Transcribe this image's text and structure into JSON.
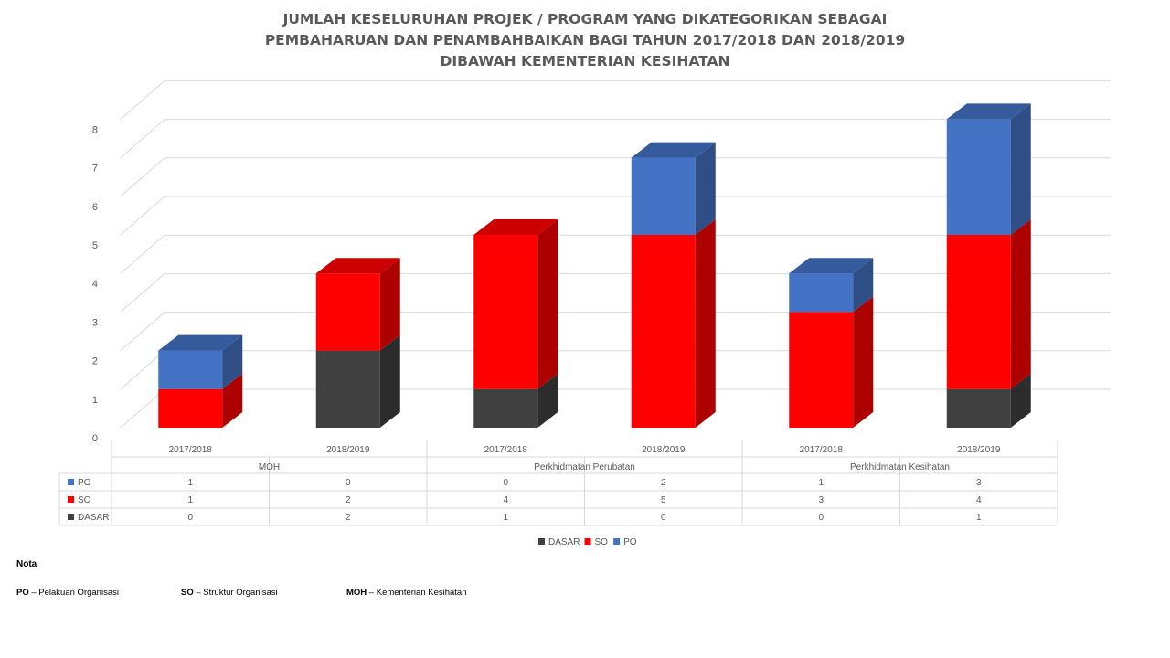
{
  "chart_data": {
    "type": "bar",
    "stacked": true,
    "style": "3d-stacked-column",
    "title_lines": [
      "JUMLAH KESELURUHAN PROJEK / PROGRAM YANG DIKATEGORIKAN SEBAGAI",
      "PEMBAHARUAN DAN PENAMBAHBAIKAN BAGI TAHUN 2017/2018 DAN 2018/2019",
      "DIBAWAH KEMENTERIAN KESIHATAN"
    ],
    "groups": [
      "MOH",
      "Perkhidmatan Perubatan",
      "Perkhidmatan Kesihatan"
    ],
    "categories": [
      "2017/2018",
      "2018/2019",
      "2017/2018",
      "2018/2019",
      "2017/2018",
      "2018/2019"
    ],
    "series": [
      {
        "name": "PO",
        "color": "#4472C4",
        "values": [
          1,
          0,
          0,
          2,
          1,
          3
        ]
      },
      {
        "name": "SO",
        "color": "#FF0000",
        "values": [
          1,
          2,
          4,
          5,
          3,
          4
        ]
      },
      {
        "name": "DASAR",
        "color": "#404040",
        "values": [
          0,
          2,
          1,
          0,
          0,
          1
        ]
      }
    ],
    "stack_order": [
      "DASAR",
      "SO",
      "PO"
    ],
    "ylim": [
      0,
      8
    ],
    "yticks": [
      "0",
      "1",
      "2",
      "3",
      "4",
      "5",
      "6",
      "7",
      "8"
    ],
    "grid": true,
    "legend": "bottom",
    "legend_order": [
      "DASAR",
      "SO",
      "PO"
    ],
    "data_table": true
  },
  "notes": {
    "heading": "Nota",
    "items": [
      {
        "abbr": "PO",
        "text": " – Pelakuan Organisasi"
      },
      {
        "abbr": "SO",
        "text": " – Struktur Organisasi"
      },
      {
        "abbr": "MOH",
        "text": " – Kementerian Kesihatan"
      }
    ]
  }
}
